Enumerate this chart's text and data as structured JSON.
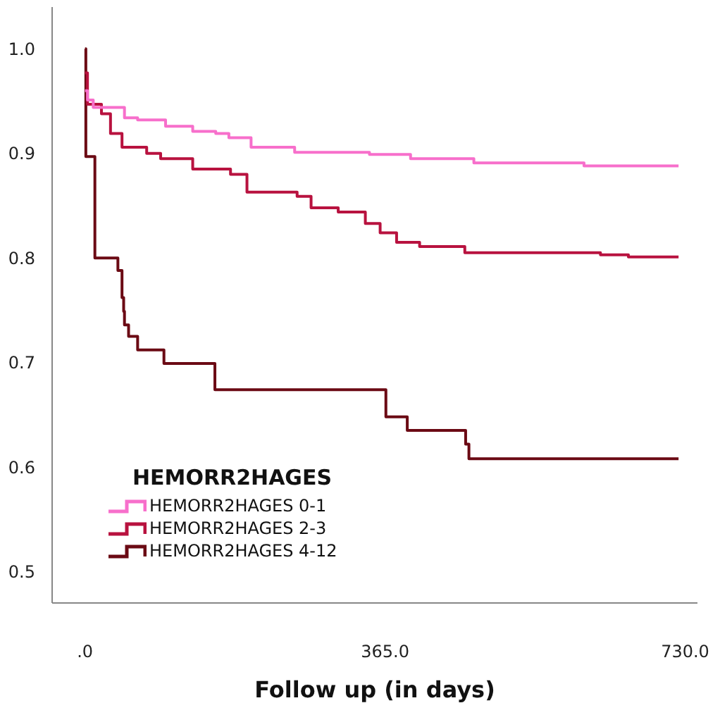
{
  "chart_data": {
    "type": "step",
    "xlabel": "Follow up (in days)",
    "legend_title": "HEMORR2HAGES",
    "legend": "bottom left",
    "grid": false,
    "line_style": "solid",
    "marker": "none",
    "xlim": [
      -40,
      745
    ],
    "ylim": [
      0.47,
      1.04
    ],
    "xticks": [
      {
        "value": 0,
        "label": ".0"
      },
      {
        "value": 365,
        "label": "365.0"
      },
      {
        "value": 730,
        "label": "730.0"
      }
    ],
    "yticks": [
      0.5,
      0.6,
      0.7,
      0.8,
      0.9,
      {
        "value": 1,
        "label": "1.0"
      }
    ],
    "series": [
      {
        "name": "HEMORR2HAGES 0-1",
        "color": "#f76fcb",
        "x": [
          0,
          3,
          10,
          48,
          64,
          98,
          131,
          159,
          175,
          202,
          255,
          346,
          396,
          473,
          607,
          722
        ],
        "values": [
          0.96,
          0.951,
          0.944,
          0.934,
          0.932,
          0.926,
          0.921,
          0.919,
          0.915,
          0.906,
          0.901,
          0.899,
          0.895,
          0.891,
          0.888,
          0.888
        ]
      },
      {
        "name": "HEMORR2HAGES 2-3",
        "color": "#b8123f",
        "x": [
          0,
          3,
          20,
          31,
          45,
          75,
          92,
          131,
          177,
          197,
          258,
          275,
          308,
          341,
          359,
          379,
          407,
          462,
          627,
          661,
          722
        ],
        "values": [
          0.977,
          0.947,
          0.938,
          0.919,
          0.906,
          0.9,
          0.895,
          0.885,
          0.88,
          0.863,
          0.859,
          0.848,
          0.844,
          0.833,
          0.824,
          0.815,
          0.811,
          0.805,
          0.803,
          0.801,
          0.801
        ]
      },
      {
        "name": "HEMORR2HAGES 4-12",
        "color": "#6b0a14",
        "x": [
          0,
          1,
          12,
          40,
          45,
          47,
          48,
          53,
          64,
          96,
          158,
          366,
          392,
          463,
          467,
          722
        ],
        "values": [
          1.0,
          0.897,
          0.8,
          0.788,
          0.762,
          0.749,
          0.736,
          0.725,
          0.712,
          0.699,
          0.674,
          0.648,
          0.635,
          0.622,
          0.608,
          0.608
        ]
      }
    ]
  }
}
